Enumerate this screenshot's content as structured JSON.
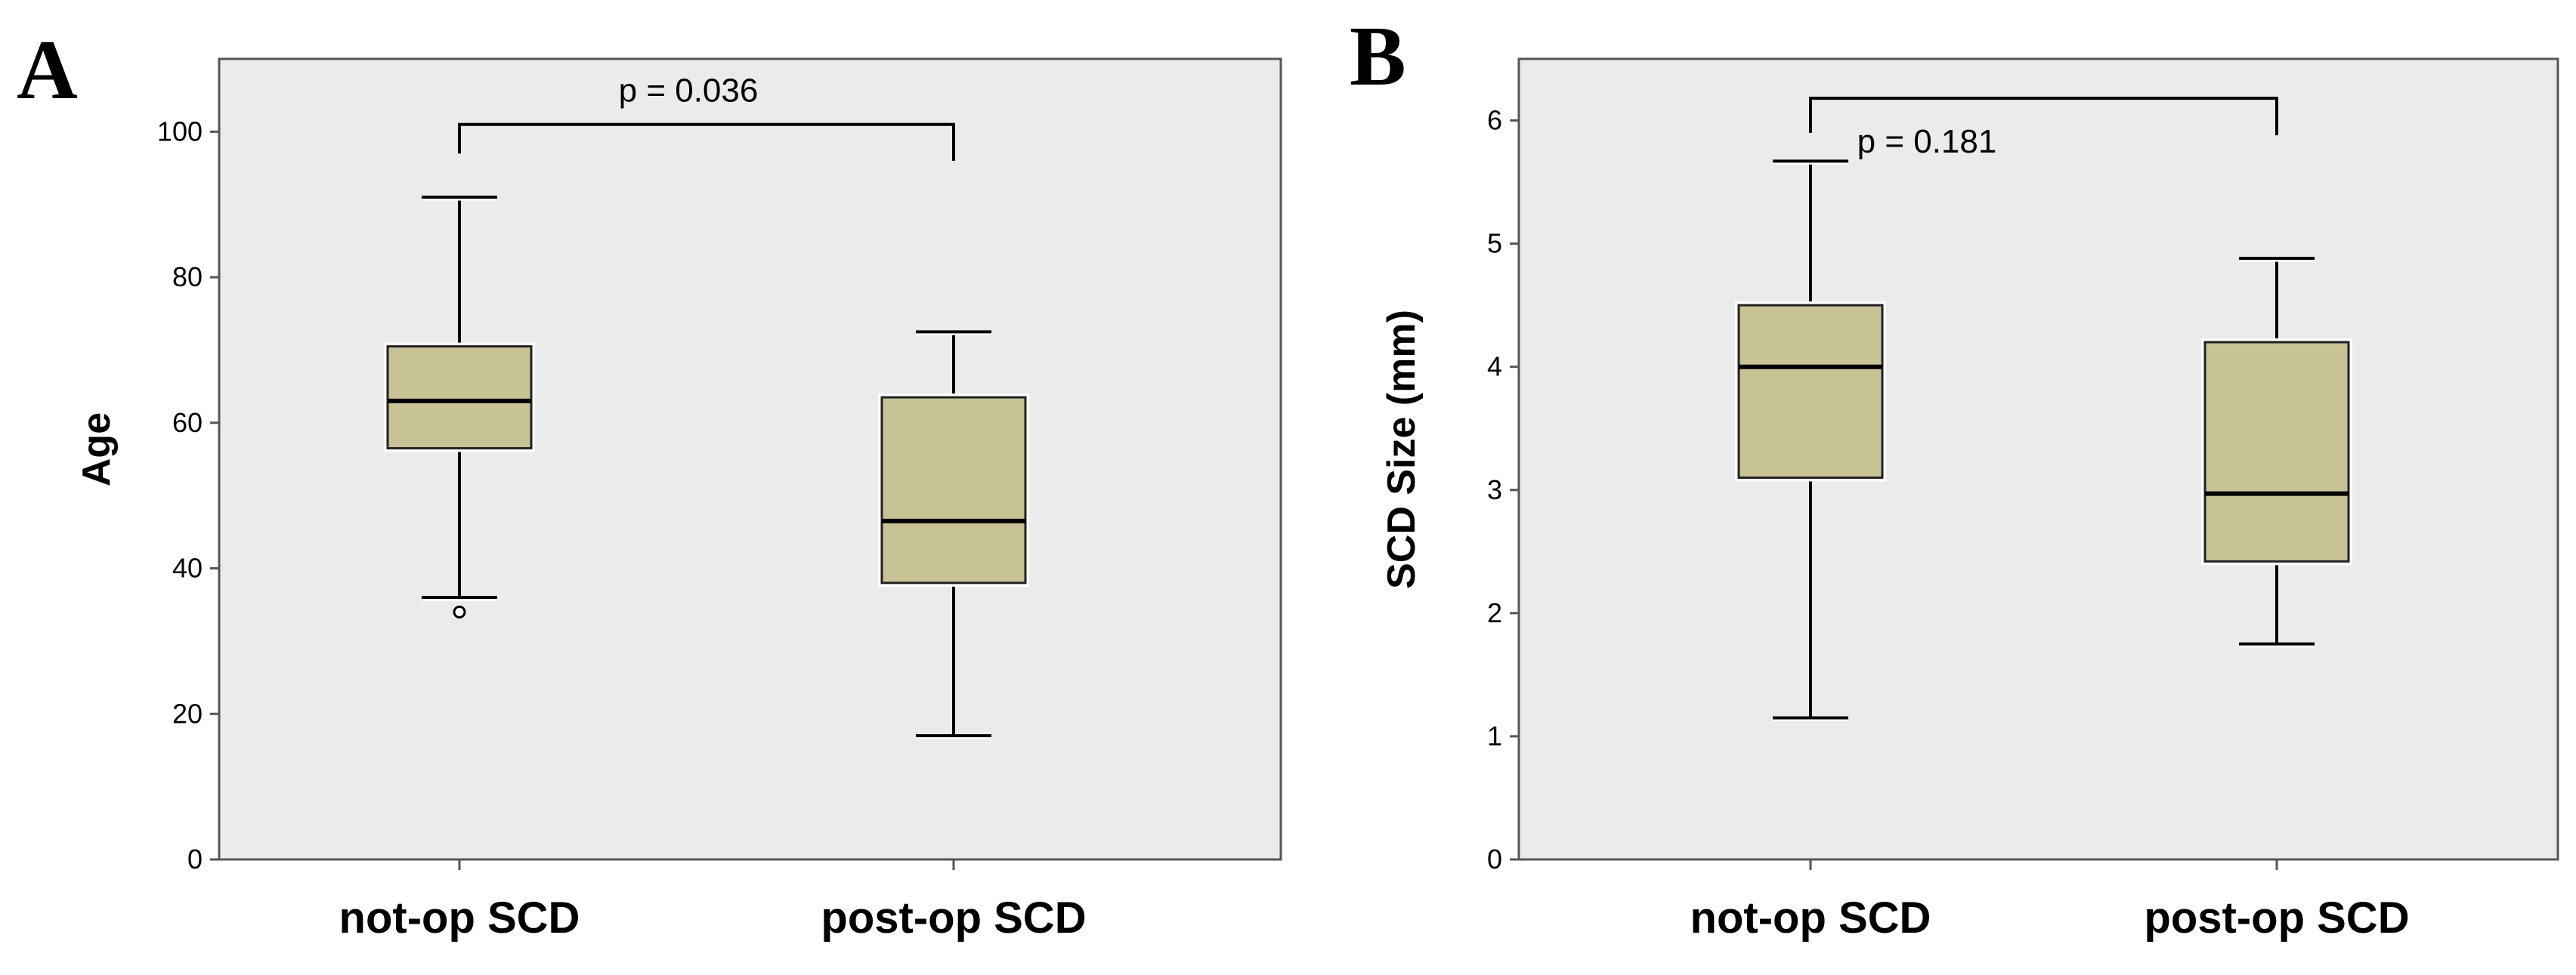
{
  "chart_data": [
    {
      "type": "box",
      "panel": "A",
      "ylabel": "Age",
      "xlabel": "",
      "ylim": [
        0,
        110
      ],
      "yticks": [
        0,
        20,
        40,
        60,
        80,
        100
      ],
      "categories": [
        "not-op SCD",
        "post-op SCD"
      ],
      "boxes": [
        {
          "category": "not-op SCD",
          "whisker_low": 36,
          "q1": 56.5,
          "median": 63,
          "q3": 70.5,
          "whisker_high": 91,
          "outliers": [
            34
          ]
        },
        {
          "category": "post-op SCD",
          "whisker_low": 17,
          "q1": 38,
          "median": 46.5,
          "q3": 63.5,
          "whisker_high": 72.5,
          "outliers": []
        }
      ],
      "annotation": {
        "text": "p = 0.036",
        "bracket_from": "not-op SCD",
        "bracket_to": "post-op SCD",
        "bracket_y": 101,
        "left_drop_to": 97,
        "right_drop_to": 96
      },
      "colors": {
        "box_fill": "#c8c396",
        "plot_bg": "#ebebeb"
      }
    },
    {
      "type": "box",
      "panel": "B",
      "ylabel": "SCD Size (mm)",
      "xlabel": "",
      "ylim": [
        0,
        6.5
      ],
      "yticks": [
        0,
        1,
        2,
        3,
        4,
        5,
        6
      ],
      "categories": [
        "not-op SCD",
        "post-op SCD"
      ],
      "boxes": [
        {
          "category": "not-op SCD",
          "whisker_low": 1.15,
          "q1": 3.1,
          "median": 4.0,
          "q3": 4.5,
          "whisker_high": 5.67,
          "outliers": []
        },
        {
          "category": "post-op SCD",
          "whisker_low": 1.75,
          "q1": 2.42,
          "median": 2.97,
          "q3": 4.2,
          "whisker_high": 4.88,
          "outliers": []
        }
      ],
      "annotation": {
        "text": "p = 0.181",
        "bracket_from": "not-op SCD",
        "bracket_to": "post-op SCD",
        "bracket_y": 6.18,
        "left_drop_to": 5.9,
        "right_drop_to": 5.88
      },
      "colors": {
        "box_fill": "#c8c396",
        "plot_bg": "#ebebeb"
      }
    }
  ]
}
